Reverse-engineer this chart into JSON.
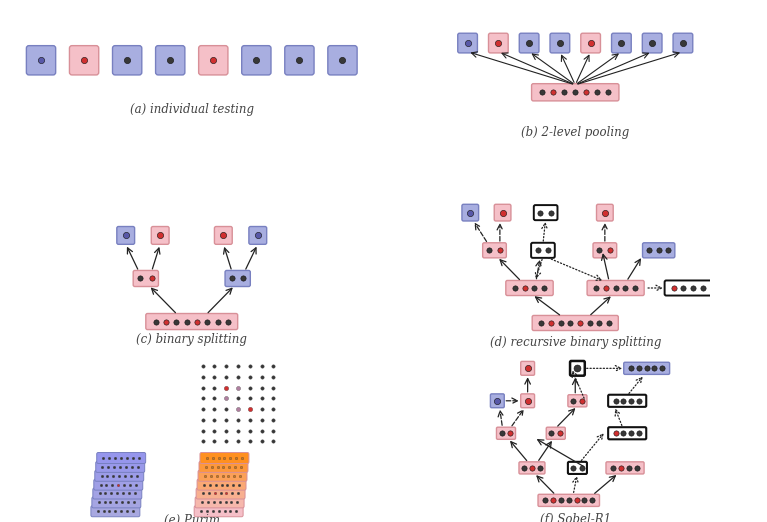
{
  "background": "#ffffff",
  "pink_box": "#f5c0c8",
  "pink_box_edge": "#d89098",
  "blue_box": "#a8aee0",
  "blue_box_edge": "#7880c0",
  "red_dot": "#d03030",
  "dark_dot": "#383838",
  "blue_dot": "#5858a8",
  "black_box_edge": "#111111",
  "caption_color": "#444444",
  "captions": [
    "(a) individual testing",
    "(b) 2-level pooling",
    "(c) binary splitting",
    "(d) recursive binary splitting",
    "(e) Purim",
    "(f) Sobel-R1"
  ]
}
